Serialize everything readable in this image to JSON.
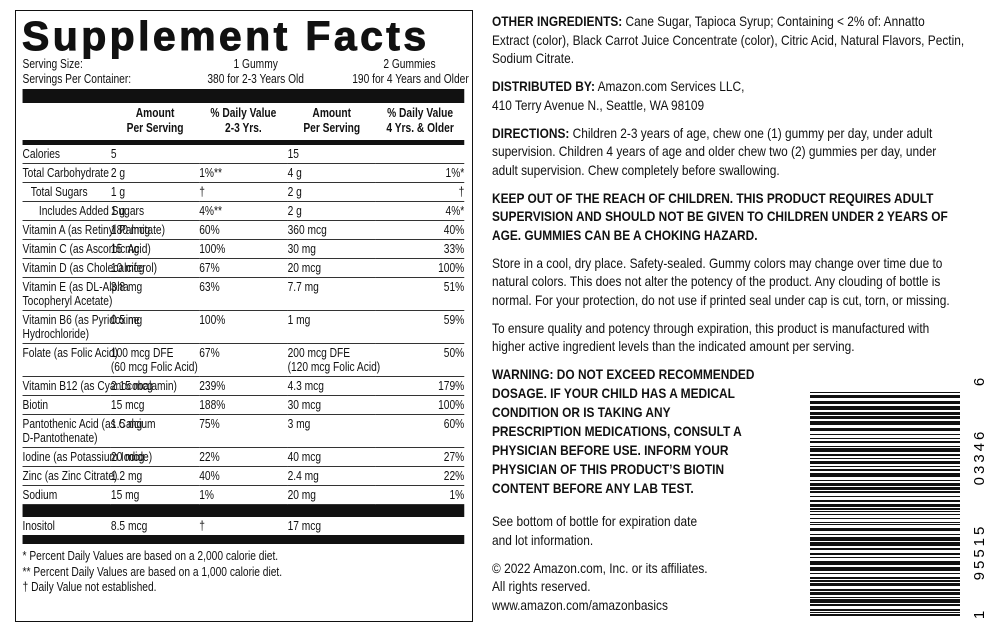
{
  "facts": {
    "title": "Supplement Facts",
    "serving_size_label": "Serving Size:",
    "servings_per_container_label": "Servings Per Container:",
    "serving_size": [
      "1 Gummy",
      "2 Gummies"
    ],
    "servings_per_container": [
      "380 for 2-3 Years Old",
      "190 for 4 Years and Older"
    ],
    "headers": [
      "Amount\nPer Serving",
      "% Daily Value\n2-3 Yrs.",
      "Amount\nPer Serving",
      "% Daily Value\n4 Yrs. & Older"
    ],
    "rows": [
      [
        "Calories",
        "5",
        null,
        "15",
        null
      ],
      [
        "Total Carbohydrate",
        "2 g",
        "1%**",
        "4 g",
        "1%*"
      ],
      [
        "Total Sugars",
        "1 g",
        "†",
        "2 g",
        "†"
      ],
      [
        "Includes Added Sugars",
        "1 g",
        "4%**",
        "2 g",
        "4%*"
      ],
      [
        "Vitamin A (as Retinyl Palmitate)",
        "180 mcg",
        "60%",
        "360 mcg",
        "40%"
      ],
      [
        "Vitamin C (as Ascorbic Acid)",
        "15 mg",
        "100%",
        "30 mg",
        "33%"
      ],
      [
        "Vitamin D (as Cholecalciferol)",
        "10 mcg",
        "67%",
        "20 mcg",
        "100%"
      ],
      [
        "Vitamin E (as DL-Alpha\nTocopheryl Acetate)",
        "3.8 mg",
        "63%",
        "7.7 mg",
        "51%"
      ],
      [
        "Vitamin B6 (as Pyridoxine\nHydrochloride)",
        "0.5 mg",
        "100%",
        "1 mg",
        "59%"
      ],
      [
        "Folate (as Folic Acid)",
        "100 mcg DFE\n(60 mcg Folic Acid)",
        "67%",
        "200 mcg DFE\n(120 mcg Folic Acid)",
        "50%"
      ],
      [
        "Vitamin B12 (as Cyanocobalamin)",
        "2.15 mcg",
        "239%",
        "4.3 mcg",
        "179%"
      ],
      [
        "Biotin",
        "15 mcg",
        "188%",
        "30 mcg",
        "100%"
      ],
      [
        "Pantothenic Acid (as Calcium\nD-Pantothenate)",
        "1.5 mg",
        "75%",
        "3 mg",
        "60%"
      ],
      [
        "Iodine (as Potassium Iodide)",
        "20 mcg",
        "22%",
        "40 mcg",
        "27%"
      ],
      [
        "Zinc (as Zinc Citrate)",
        "1.2 mg",
        "40%",
        "2.4 mg",
        "22%"
      ],
      [
        "Sodium",
        "15 mg",
        "1%",
        "20 mg",
        "1%"
      ]
    ],
    "extra_rows": [
      [
        "Inositol",
        "8.5 mcg",
        "†",
        "17 mcg",
        null
      ]
    ],
    "footnotes": [
      "* Percent Daily Values are based on a 2,000 calorie diet.",
      "** Percent Daily Values are based on a 1,000 calorie diet.",
      "† Daily Value not established."
    ]
  },
  "info": {
    "ingredients": {
      "lead": "OTHER INGREDIENTS:",
      "text": "Cane Sugar, Tapioca Syrup; Containing < 2% of: Annatto Extract (color), Black Carrot Juice Concentrate (color), Citric Acid, Natural Flavors, Pectin, Sodium Citrate."
    },
    "distributor": {
      "lead": "DISTRIBUTED BY:",
      "name": "Amazon.com Services LLC,",
      "address": "410 Terry Avenue N., Seattle, WA 98109"
    },
    "directions": {
      "lead": "DIRECTIONS:",
      "text": "Children 2-3 years of age, chew one (1) gummy per day, under adult supervision. Children 4 years of age and older chew two (2) gummies per day, under adult supervision. Chew completely before swallowing."
    },
    "caution": "KEEP OUT OF THE REACH OF CHILDREN. THIS PRODUCT REQUIRES ADULT SUPERVISION AND SHOULD NOT BE GIVEN TO CHILDREN UNDER 2 YEARS OF AGE. GUMMIES CAN BE A CHOKING HAZARD.",
    "storage": "Store in a cool, dry place. Safety-sealed. Gummy colors may change over time due to natural colors. This does not alter the potency of the product. Any clouding of bottle is normal. For your protection, do not use if printed seal under cap is cut, torn, or missing.",
    "potency": "To ensure quality and potency through expiration, this product is manufactured with higher active ingredient levels than the indicated amount per serving.",
    "warning": [
      "WARNING:  DO NOT EXCEED RECOMMENDED",
      "DOSAGE. IF YOUR CHILD HAS A MEDICAL",
      "CONDITION OR IS TAKING ANY",
      "PRESCRIPTION MEDICATIONS, CONSULT A",
      "PHYSICIAN BEFORE USE. INFORM YOUR",
      "PHYSICIAN OF THIS PRODUCT’S BIOTIN",
      "CONTENT BEFORE ANY LAB TEST."
    ],
    "expiration": [
      "See bottom of bottle for expiration date",
      "and lot information."
    ],
    "copyright": [
      "© 2022 Amazon.com, Inc. or its affiliates.",
      "All rights reserved."
    ],
    "website": "www.amazon.com/amazonbasics"
  },
  "barcode": {
    "digits": [
      "1",
      "95515",
      "03346",
      "6"
    ]
  }
}
